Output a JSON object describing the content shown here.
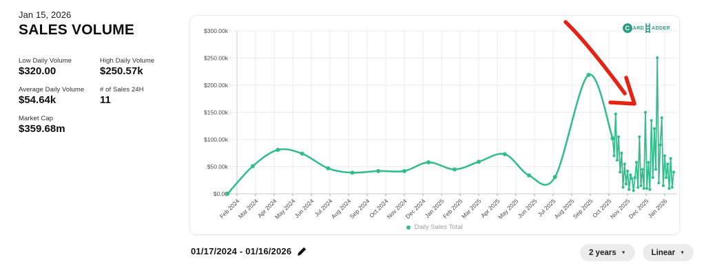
{
  "header": {
    "date": "Jan 15, 2026",
    "title": "SALES VOLUME"
  },
  "stats": [
    {
      "label": "Low Daily Volume",
      "value": "$320.00"
    },
    {
      "label": "High Daily Volume",
      "value": "$250.57k"
    },
    {
      "label": "Average Daily Volume",
      "value": "$54.64k"
    },
    {
      "label": "# of Sales 24H",
      "value": "11"
    },
    {
      "label": "Market Cap",
      "value": "$359.68m"
    }
  ],
  "controls": {
    "date_range": "01/17/2024 - 01/16/2026",
    "range_dropdown": "2 years",
    "scale_dropdown": "Linear"
  },
  "watermark": {
    "c": "C",
    "word1": "ARD",
    "word2": "ADDER",
    "color": "#2a9d82"
  },
  "colors": {
    "line": "#33bd8b",
    "arrow": "#e42313",
    "grid": "#ebebeb",
    "axis": "#c8c8c8",
    "tick_text": "#4a4a4a",
    "legend_text": "#9aa0a6",
    "pill_bg": "#ececec"
  },
  "chart_data": {
    "type": "line",
    "title": "Sales Volume - Daily Sales Total",
    "grid": true,
    "legend_position": "bottom",
    "x_unit": "months since Feb 2024 tick (range 01/17/2024 - 01/16/2026)",
    "y_unit": "USD thousands",
    "y_axis": {
      "min": 0,
      "max": 300,
      "tick_step": 50,
      "tick_labels": [
        "$0.00",
        "$50.00k",
        "$100.00k",
        "$150.00k",
        "$200.00k",
        "$250.00k",
        "$300.00k"
      ]
    },
    "x_axis": {
      "tick_labels": [
        "Feb 2024",
        "Mar 2024",
        "Apr 2024",
        "May 2024",
        "Jun 2024",
        "Jul 2024",
        "Aug 2024",
        "Sep 2024",
        "Oct 2024",
        "Nov 2024",
        "Dec 2024",
        "Jan 2025",
        "Feb 2025",
        "Mar 2025",
        "Apr 2025",
        "May 2025",
        "Jun 2025",
        "Jul 2025",
        "Aug 2025",
        "Sep 2025",
        "Oct 2025",
        "Nov 2025",
        "Dec 2025",
        "Jan 2026"
      ]
    },
    "series": [
      {
        "name": "Daily Sales Total",
        "color": "#33bd8b",
        "smooth_points": [
          [
            -0.5,
            0.32
          ],
          [
            0.85,
            51
          ],
          [
            2.2,
            81
          ],
          [
            3.5,
            74
          ],
          [
            4.9,
            47
          ],
          [
            6.2,
            39
          ],
          [
            7.6,
            42
          ],
          [
            9.0,
            42
          ],
          [
            10.3,
            58
          ],
          [
            11.7,
            45
          ],
          [
            13.0,
            59
          ],
          [
            14.4,
            73
          ],
          [
            15.7,
            34
          ],
          [
            17.1,
            31
          ],
          [
            18.9,
            219
          ],
          [
            20.2,
            102
          ]
        ],
        "daily_points": [
          [
            20.28,
            70
          ],
          [
            20.36,
            147
          ],
          [
            20.44,
            62
          ],
          [
            20.52,
            105
          ],
          [
            20.6,
            40
          ],
          [
            20.68,
            75
          ],
          [
            20.76,
            12
          ],
          [
            20.84,
            55
          ],
          [
            20.92,
            18
          ],
          [
            21.0,
            42
          ],
          [
            21.08,
            8
          ],
          [
            21.16,
            35
          ],
          [
            21.24,
            28
          ],
          [
            21.32,
            6
          ],
          [
            21.4,
            30
          ],
          [
            21.48,
            58
          ],
          [
            21.56,
            12
          ],
          [
            21.64,
            105
          ],
          [
            21.72,
            15
          ],
          [
            21.8,
            45
          ],
          [
            21.88,
            10
          ],
          [
            21.96,
            150
          ],
          [
            22.04,
            10
          ],
          [
            22.12,
            58
          ],
          [
            22.2,
            8
          ],
          [
            22.28,
            135
          ],
          [
            22.36,
            30
          ],
          [
            22.44,
            120
          ],
          [
            22.52,
            45
          ],
          [
            22.6,
            250.57
          ],
          [
            22.68,
            20
          ],
          [
            22.76,
            90
          ],
          [
            22.84,
            140
          ],
          [
            22.92,
            15
          ],
          [
            23.0,
            70
          ],
          [
            23.08,
            30
          ],
          [
            23.16,
            55
          ],
          [
            23.24,
            10
          ],
          [
            23.32,
            65
          ],
          [
            23.4,
            12
          ],
          [
            23.48,
            40
          ]
        ]
      }
    ],
    "annotation": {
      "type": "hand-drawn-arrow",
      "color": "#e42313",
      "note": "red arrow pointing at recent daily volume spikes (Nov 2025 - Jan 2026)"
    }
  }
}
